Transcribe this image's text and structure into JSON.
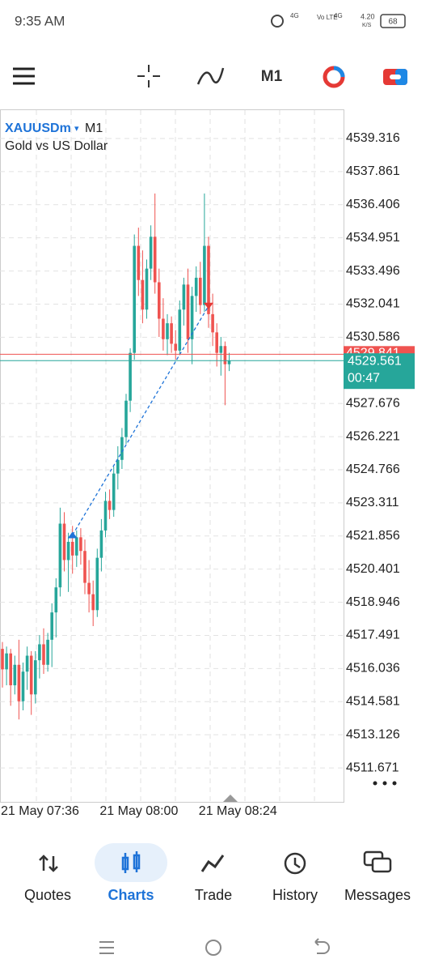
{
  "status": {
    "time": "9:35 AM",
    "net1": "4G",
    "net2": "Vo LTE",
    "net3": "4G",
    "speed": "4.20",
    "speed_unit": "K/S",
    "battery": "68"
  },
  "toolbar": {
    "timeframe": "M1"
  },
  "chart_data": {
    "type": "candlestick",
    "symbol": "XAUUSDm",
    "timeframe": "M1",
    "subtitle": "Gold vs US Dollar",
    "up_color": "#26a69a",
    "down_color": "#ef5350",
    "open": [
      4516.9,
      4516.0,
      4516.7,
      4515.3,
      4516.2,
      4514.6,
      4515.9,
      4516.6,
      4514.9,
      4516.4,
      4517.1,
      4516.2,
      4517.3,
      4518.5,
      4519.6,
      4522.4,
      4520.8,
      4521.6,
      4521.0,
      4521.8,
      4521.2,
      4519.8,
      4519.3,
      4518.6,
      4520.9,
      4522.1,
      4523.4,
      4523.0,
      4524.6,
      4525.2,
      4526.2,
      4527.8,
      4529.9,
      4534.6,
      4533.1,
      4531.8,
      4533.6,
      4535.0,
      4533.0,
      4531.4,
      4530.5,
      4531.2,
      4530.3,
      4530.0,
      4531.8,
      4532.9,
      4530.5,
      4532.4,
      4533.2,
      4532.0,
      4534.6,
      4531.6,
      4530.8,
      4529.9,
      4530.2,
      4529.4
    ],
    "high": [
      4517.2,
      4517.0,
      4516.9,
      4516.6,
      4517.3,
      4516.3,
      4517.0,
      4516.8,
      4516.8,
      4517.5,
      4517.8,
      4517.6,
      4518.9,
      4520.0,
      4523.1,
      4522.9,
      4522.0,
      4522.3,
      4522.1,
      4522.2,
      4521.7,
      4520.8,
      4519.9,
      4521.3,
      4522.6,
      4523.8,
      4523.9,
      4524.9,
      4525.8,
      4526.6,
      4528.1,
      4530.1,
      4535.1,
      4535.4,
      4534.4,
      4534.0,
      4535.5,
      4536.9,
      4533.6,
      4532.3,
      4531.6,
      4531.5,
      4530.9,
      4532.2,
      4533.2,
      4533.6,
      4532.8,
      4533.7,
      4533.9,
      4536.9,
      4535.0,
      4532.5,
      4531.2,
      4530.6,
      4530.4,
      4529.9
    ],
    "low": [
      4515.2,
      4515.3,
      4514.4,
      4514.9,
      4513.8,
      4514.2,
      4515.1,
      4514.0,
      4514.5,
      4515.6,
      4515.8,
      4515.9,
      4516.1,
      4517.4,
      4519.2,
      4520.3,
      4519.4,
      4520.2,
      4520.5,
      4520.6,
      4519.3,
      4518.5,
      4517.9,
      4518.3,
      4520.3,
      4521.8,
      4522.6,
      4522.7,
      4523.9,
      4524.8,
      4525.9,
      4527.3,
      4529.6,
      4532.4,
      4531.2,
      4531.4,
      4533.1,
      4532.5,
      4530.6,
      4530.0,
      4529.8,
      4529.9,
      4529.6,
      4529.8,
      4531.1,
      4529.9,
      4529.4,
      4531.7,
      4531.6,
      4531.7,
      4531.0,
      4530.2,
      4529.3,
      4528.9,
      4527.6,
      4529.1
    ],
    "close": [
      4516.0,
      4516.7,
      4515.3,
      4516.2,
      4514.6,
      4515.9,
      4516.6,
      4514.9,
      4516.4,
      4517.1,
      4516.2,
      4517.3,
      4518.5,
      4519.6,
      4522.4,
      4520.8,
      4521.6,
      4521.0,
      4521.8,
      4521.2,
      4519.8,
      4519.3,
      4518.6,
      4520.9,
      4522.1,
      4523.4,
      4523.0,
      4524.6,
      4525.2,
      4526.2,
      4527.8,
      4529.9,
      4534.6,
      4533.1,
      4531.8,
      4533.6,
      4535.0,
      4533.0,
      4531.4,
      4530.5,
      4531.2,
      4530.3,
      4530.0,
      4531.8,
      4532.9,
      4530.5,
      4532.4,
      4533.2,
      4532.0,
      4534.6,
      4531.6,
      4530.8,
      4529.9,
      4530.2,
      4529.4,
      4529.561
    ],
    "x_labels": [
      "21 May 07:36",
      "21 May 08:00",
      "21 May 08:24"
    ],
    "ylim": [
      4510.18,
      4540.56
    ],
    "yticks": [
      4539.316,
      4537.861,
      4536.406,
      4534.951,
      4533.496,
      4532.041,
      4530.586,
      4527.676,
      4526.221,
      4524.766,
      4523.311,
      4521.856,
      4520.401,
      4518.946,
      4517.491,
      4516.036,
      4514.581,
      4513.126,
      4511.671
    ],
    "bid": 4529.561,
    "ask": 4529.841,
    "countdown": "00:47",
    "trades": {
      "buy_index": 17,
      "buy_price": 4521.9,
      "sell_index": 50,
      "sell_price": 4531.96
    }
  },
  "nav": [
    "Quotes",
    "Charts",
    "Trade",
    "History",
    "Messages"
  ]
}
